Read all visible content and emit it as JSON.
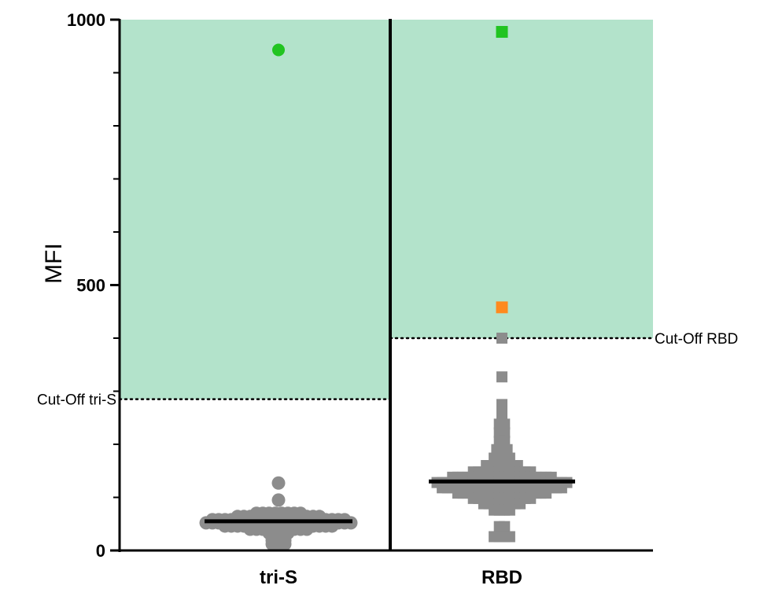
{
  "chart_data": {
    "type": "scatter",
    "ylabel": "MFI",
    "ylim": [
      0,
      1000
    ],
    "yticks": [
      {
        "value": 0,
        "label": "0"
      },
      {
        "value": 500,
        "label": "500"
      },
      {
        "value": 1000,
        "label": "1000"
      }
    ],
    "categories": [
      "tri-S",
      "RBD"
    ],
    "colors": {
      "negative": "#8c8c8c",
      "positive_high": "#21c421",
      "positive_low": "#ff8a1e",
      "positive_zone": "#b3e3cb",
      "median_line": "#000000"
    },
    "groups": [
      {
        "name": "tri-S",
        "marker": "circle",
        "cutoff": 285,
        "cutoff_label": "Cut-Off tri-S",
        "median": 55,
        "positives": [
          {
            "value": 943,
            "color_key": "positive_high"
          }
        ],
        "distribution": [
          {
            "value": 127,
            "count": 1
          },
          {
            "value": 95,
            "count": 1
          },
          {
            "value": 70,
            "count": 8
          },
          {
            "value": 64,
            "count": 14
          },
          {
            "value": 58,
            "count": 22
          },
          {
            "value": 52,
            "count": 24
          },
          {
            "value": 46,
            "count": 18
          },
          {
            "value": 40,
            "count": 10
          },
          {
            "value": 33,
            "count": 4
          },
          {
            "value": 26,
            "count": 3
          },
          {
            "value": 19,
            "count": 3
          },
          {
            "value": 12,
            "count": 3
          }
        ]
      },
      {
        "name": "RBD",
        "marker": "square",
        "cutoff": 400,
        "cutoff_label": "Cut-Off RBD",
        "median": 130,
        "positives": [
          {
            "value": 977,
            "color_key": "positive_high"
          },
          {
            "value": 458,
            "color_key": "positive_low"
          }
        ],
        "distribution": [
          {
            "value": 400,
            "count": 1
          },
          {
            "value": 327,
            "count": 1
          },
          {
            "value": 275,
            "count": 1
          },
          {
            "value": 255,
            "count": 1
          },
          {
            "value": 238,
            "count": 2
          },
          {
            "value": 222,
            "count": 2
          },
          {
            "value": 206,
            "count": 2
          },
          {
            "value": 190,
            "count": 3
          },
          {
            "value": 174,
            "count": 4
          },
          {
            "value": 160,
            "count": 7
          },
          {
            "value": 148,
            "count": 12
          },
          {
            "value": 138,
            "count": 20
          },
          {
            "value": 128,
            "count": 26
          },
          {
            "value": 118,
            "count": 24
          },
          {
            "value": 108,
            "count": 18
          },
          {
            "value": 98,
            "count": 12
          },
          {
            "value": 88,
            "count": 8
          },
          {
            "value": 76,
            "count": 4
          },
          {
            "value": 45,
            "count": 2
          },
          {
            "value": 26,
            "count": 4
          }
        ]
      }
    ]
  }
}
